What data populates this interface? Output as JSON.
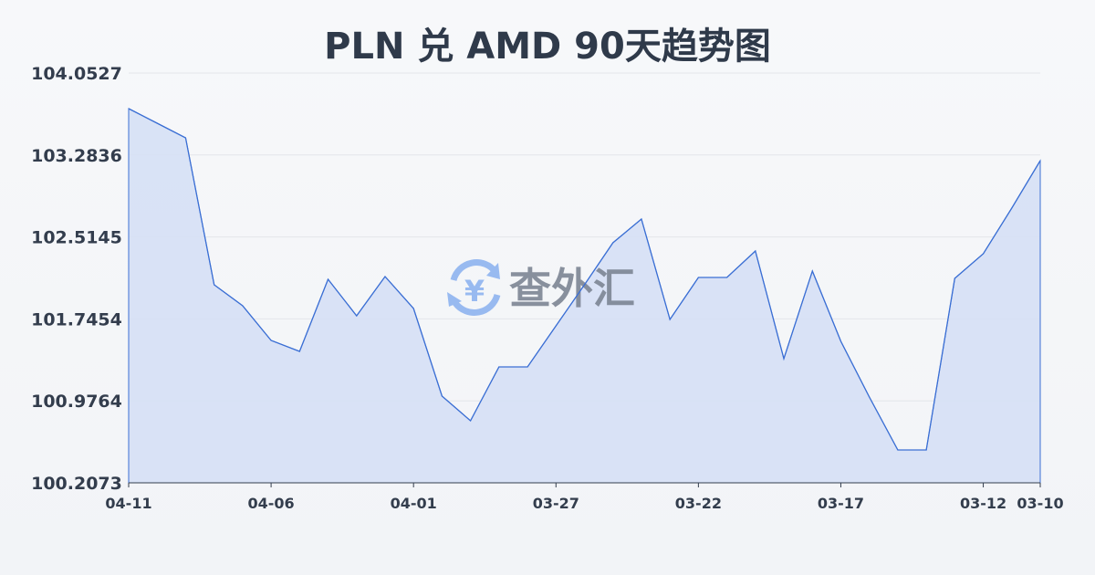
{
  "chart_data": {
    "type": "area",
    "title": "PLN 兑 AMD 90天趋势图",
    "xlabel": "",
    "ylabel": "",
    "ylim": [
      100.2073,
      104.0527
    ],
    "y_ticks": [
      "104.0527",
      "103.2836",
      "102.5145",
      "101.7454",
      "100.9764",
      "100.2073"
    ],
    "x_ticks": [
      "04-11",
      "04-06",
      "04-01",
      "03-27",
      "03-22",
      "03-17",
      "03-12",
      "03-10"
    ],
    "grid": true,
    "x": [
      "04-11",
      "04-10",
      "04-09",
      "04-08",
      "04-07",
      "04-06",
      "04-05",
      "04-04",
      "04-03",
      "04-02",
      "04-01",
      "03-31",
      "03-30",
      "03-29",
      "03-28",
      "03-27",
      "03-26",
      "03-25",
      "03-24",
      "03-23",
      "03-22",
      "03-21",
      "03-20",
      "03-19",
      "03-18",
      "03-17",
      "03-16",
      "03-15",
      "03-14",
      "03-13",
      "03-12",
      "03-11",
      "03-10"
    ],
    "values": [
      103.7187,
      103.5817,
      103.4446,
      102.0658,
      101.8688,
      101.5433,
      101.4406,
      102.1171,
      101.7746,
      102.1428,
      101.8431,
      101.0209,
      100.7897,
      101.295,
      101.295,
      101.6804,
      102.0658,
      102.4597,
      102.6824,
      101.7403,
      102.1343,
      102.1343,
      102.3826,
      101.372,
      102.1942,
      101.5348,
      101.0123,
      100.5156,
      100.5156,
      102.1257,
      102.3569,
      102.7852,
      103.2305
    ],
    "colors": {
      "line": "#3b6fd4",
      "fill": "#d6e0f5",
      "grid": "#e3e6ea"
    }
  },
  "watermark": {
    "text": "查外汇",
    "icon": "yuen-exchange-icon"
  }
}
